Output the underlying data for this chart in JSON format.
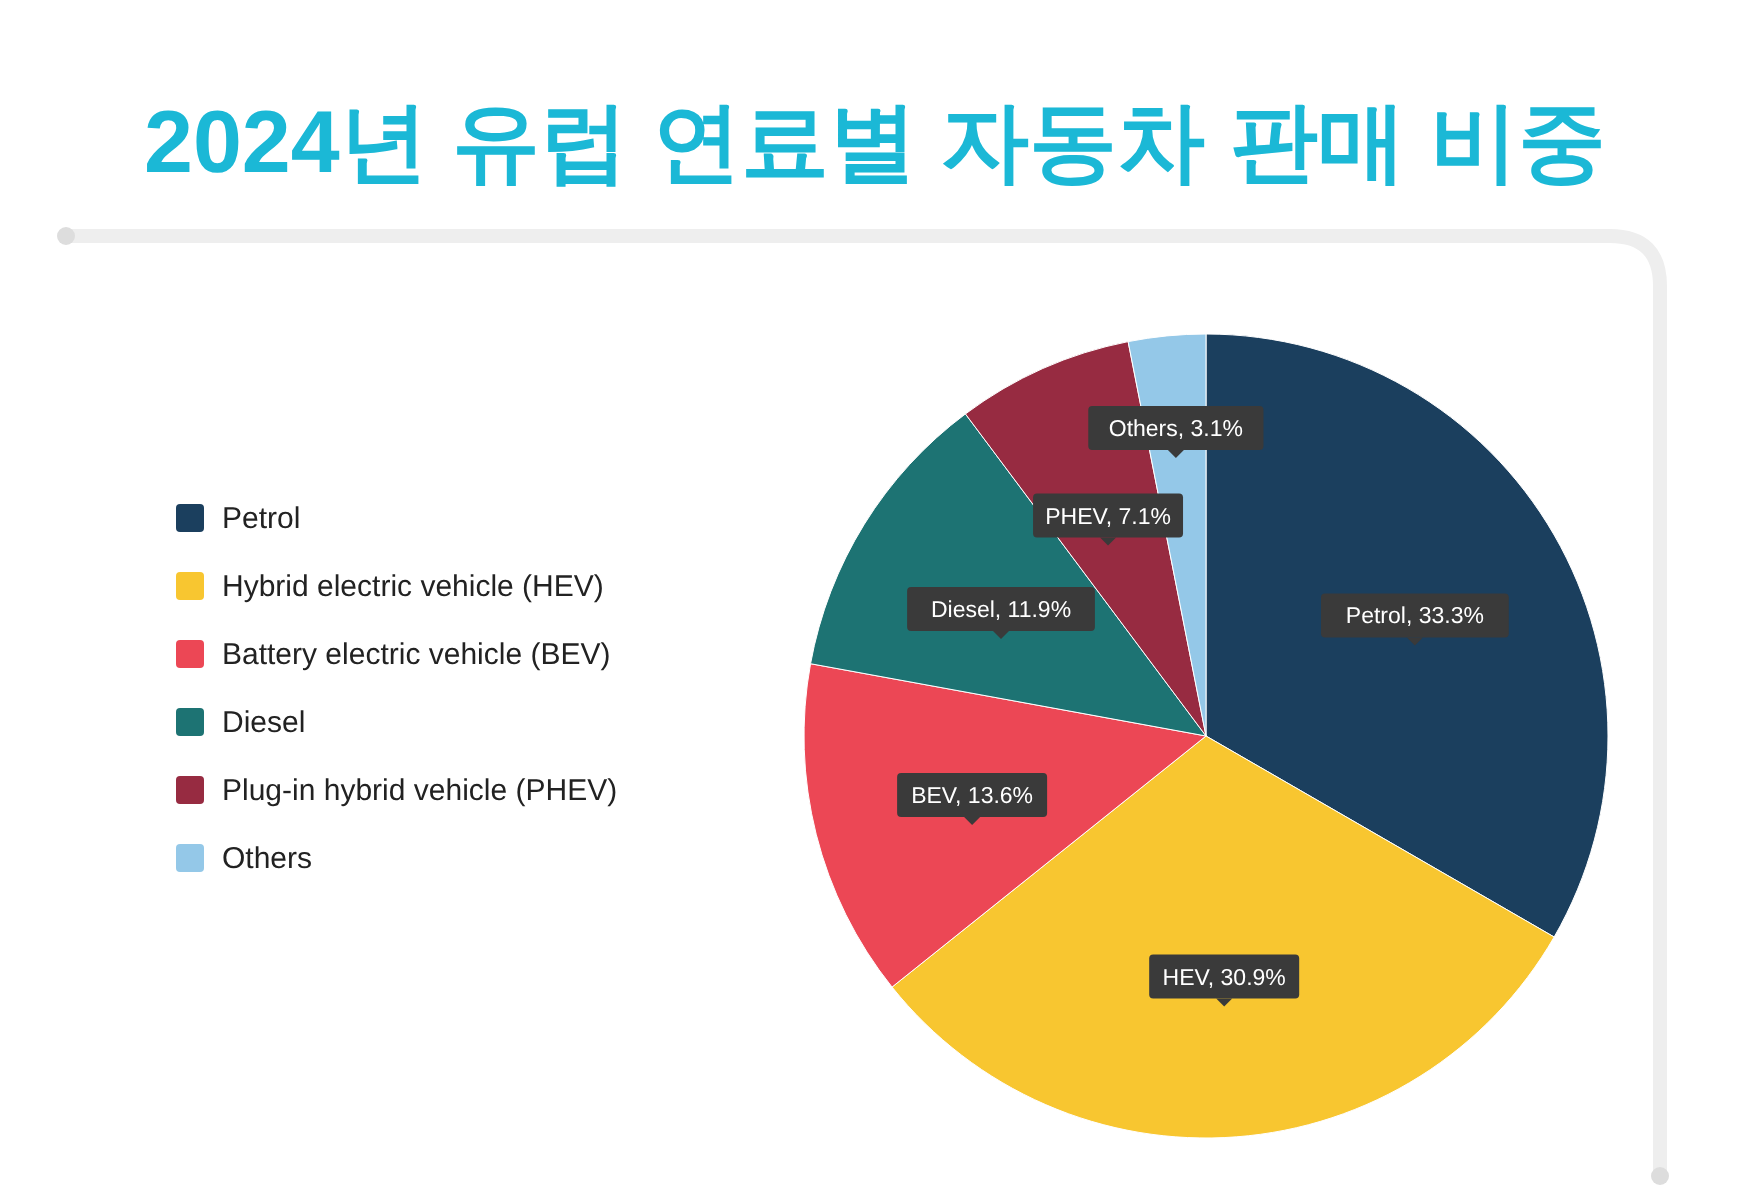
{
  "chart_data": {
    "type": "pie",
    "title": "2024년 유럽 연료별 자동차 판매 비중",
    "categories": [
      "Petrol",
      "Hybrid electric vehicle (HEV)",
      "Battery electric vehicle (BEV)",
      "Diesel",
      "Plug-in hybrid vehicle (PHEV)",
      "Others"
    ],
    "values": [
      33.3,
      30.9,
      13.6,
      11.9,
      7.1,
      3.1
    ],
    "colors": [
      "#1b3f5e",
      "#f8c630",
      "#ec4755",
      "#1d7373",
      "#972b41",
      "#94c8e8"
    ],
    "value_labels": [
      "Petrol, 33.3%",
      "HEV, 30.9%",
      "BEV, 13.6%",
      "Diesel, 11.9%",
      "PHEV, 7.1%",
      "Others, 3.1%"
    ],
    "legend": "left"
  }
}
